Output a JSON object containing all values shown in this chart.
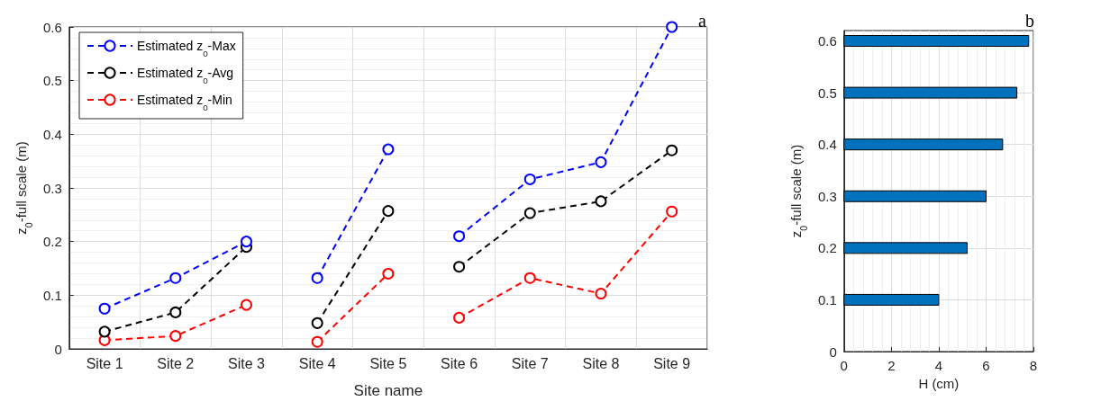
{
  "chart_data": [
    {
      "type": "line",
      "title": "a",
      "xlabel": "Site name",
      "ylabel": "z$_{0}$-full scale (m)",
      "categories": [
        "Site 1",
        "Site 2",
        "Site 3",
        "Site 4",
        "Site 5",
        "Site 6",
        "Site 7",
        "Site 8",
        "Site 9"
      ],
      "series": [
        {
          "name": "Estimated z$_{0}$-Max",
          "color": "#0000ff",
          "x": [
            "Site 1",
            "Site 2",
            "Site 3"
          ],
          "values": [
            0.075,
            0.132,
            0.2
          ]
        },
        {
          "name": "Estimated z$_{0}$-Avg",
          "color": "#000000",
          "x": [
            "Site 1",
            "Site 2",
            "Site 3"
          ],
          "values": [
            0.032,
            0.068,
            0.19
          ]
        },
        {
          "name": "Estimated z$_{0}$-Min",
          "color": "#ff0000",
          "x": [
            "Site 1",
            "Site 2",
            "Site 3"
          ],
          "values": [
            0.016,
            0.024,
            0.082
          ]
        },
        {
          "color": "#0000ff",
          "x": [
            "Site 4",
            "Site 5"
          ],
          "values": [
            0.132,
            0.372
          ]
        },
        {
          "color": "#000000",
          "x": [
            "Site 4",
            "Site 5"
          ],
          "values": [
            0.048,
            0.257
          ]
        },
        {
          "color": "#ff0000",
          "x": [
            "Site 4",
            "Site 5"
          ],
          "values": [
            0.013,
            0.14
          ]
        },
        {
          "color": "#0000ff",
          "x": [
            "Site 6",
            "Site 7",
            "Site 8",
            "Site 9"
          ],
          "values": [
            0.21,
            0.316,
            0.348,
            0.6
          ]
        },
        {
          "color": "#000000",
          "x": [
            "Site 6",
            "Site 7",
            "Site 8",
            "Site 9"
          ],
          "values": [
            0.153,
            0.253,
            0.275,
            0.37
          ]
        },
        {
          "color": "#ff0000",
          "x": [
            "Site 6",
            "Site 7",
            "Site 8",
            "Site 9"
          ],
          "values": [
            0.058,
            0.132,
            0.103,
            0.256
          ]
        }
      ],
      "ylim": [
        0,
        0.6
      ],
      "yticks": [
        0,
        0.1,
        0.2,
        0.3,
        0.4,
        0.5,
        0.6
      ],
      "grid": true,
      "legend": "top left",
      "marker": "circle",
      "line_style": "dashed"
    },
    {
      "type": "bar",
      "title": "b",
      "orientation": "horizontal",
      "xlabel": "H (cm)",
      "ylabel": "z$_{0}$-full scale (m)",
      "x": [
        0.1,
        0.2,
        0.3,
        0.4,
        0.5,
        0.6
      ],
      "values": [
        4.0,
        5.2,
        6.0,
        6.7,
        7.3,
        7.8
      ],
      "color": "#0072bd",
      "xlim": [
        0,
        8
      ],
      "xticks": [
        0,
        2,
        4,
        6,
        8
      ],
      "ylim": [
        0,
        0.62
      ],
      "yticks": [
        0,
        0.1,
        0.2,
        0.3,
        0.4,
        0.5,
        0.6
      ],
      "grid": true,
      "legend": false
    }
  ]
}
